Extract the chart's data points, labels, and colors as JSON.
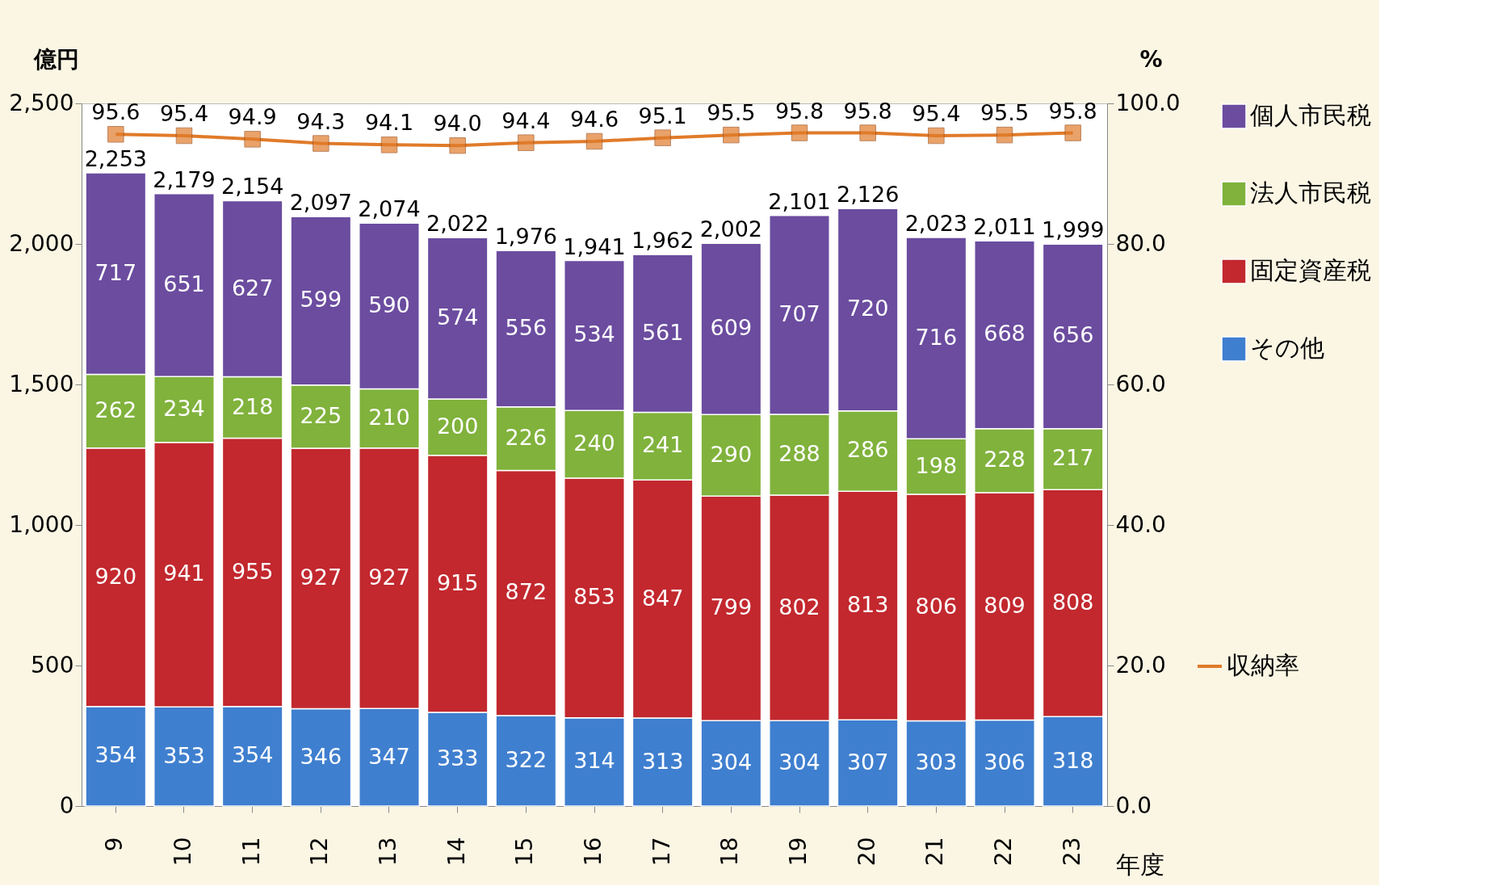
{
  "chart_data": {
    "type": "bar",
    "stacked": true,
    "data_labels": true,
    "grid": false,
    "legend": "right",
    "categories": [
      "9",
      "10",
      "11",
      "12",
      "13",
      "14",
      "15",
      "16",
      "17",
      "18",
      "19",
      "20",
      "21",
      "22",
      "23"
    ],
    "xlabel": "年度",
    "ylabel": "億円",
    "y2label": "%",
    "ylim": [
      0,
      2500
    ],
    "yticks": [
      {
        "value": 0,
        "label": "0"
      },
      {
        "value": 500,
        "label": "500"
      },
      {
        "value": 1000,
        "label": "1,000"
      },
      {
        "value": 1500,
        "label": "1,500"
      },
      {
        "value": 2000,
        "label": "2,000"
      },
      {
        "value": 2500,
        "label": "2,500"
      }
    ],
    "y2lim": [
      0,
      100
    ],
    "y2ticks": [
      {
        "value": 0,
        "label": "0.0"
      },
      {
        "value": 20,
        "label": "20.0"
      },
      {
        "value": 40,
        "label": "40.0"
      },
      {
        "value": 60,
        "label": "60.0"
      },
      {
        "value": 80,
        "label": "80.0"
      },
      {
        "value": 100,
        "label": "100.0"
      }
    ],
    "series": [
      {
        "name": "その他",
        "color": "#3f7fcf",
        "values": [
          354,
          353,
          354,
          346,
          347,
          333,
          322,
          314,
          313,
          304,
          304,
          307,
          303,
          306,
          318
        ]
      },
      {
        "name": "固定資産税",
        "color": "#c2282e",
        "values": [
          920,
          941,
          955,
          927,
          927,
          915,
          872,
          853,
          847,
          799,
          802,
          813,
          806,
          809,
          808
        ]
      },
      {
        "name": "法人市民税",
        "color": "#80b23c",
        "values": [
          262,
          234,
          218,
          225,
          210,
          200,
          226,
          240,
          241,
          290,
          288,
          286,
          198,
          228,
          217
        ]
      },
      {
        "name": "個人市民税",
        "color": "#6b4c9f",
        "values": [
          717,
          651,
          627,
          599,
          590,
          574,
          556,
          534,
          561,
          609,
          707,
          720,
          716,
          668,
          656
        ]
      },
      {
        "name": "収納率",
        "type": "line",
        "axis": "y2",
        "color": "#e07b2a",
        "marker": "square",
        "line_style": "solid",
        "values": [
          95.6,
          95.4,
          94.9,
          94.3,
          94.1,
          94.0,
          94.4,
          94.6,
          95.1,
          95.5,
          95.8,
          95.8,
          95.4,
          95.5,
          95.8
        ],
        "value_labels": [
          "95.6",
          "95.4",
          "94.9",
          "94.3",
          "94.1",
          "94.0",
          "94.4",
          "94.6",
          "95.1",
          "95.5",
          "95.8",
          "95.8",
          "95.4",
          "95.5",
          "95.8"
        ]
      }
    ],
    "totals": [
      "2,253",
      "2,179",
      "2,154",
      "2,097",
      "2,074",
      "2,022",
      "1,976",
      "1,941",
      "1,962",
      "2,002",
      "2,101",
      "2,126",
      "2,023",
      "2,011",
      "1,999"
    ]
  }
}
